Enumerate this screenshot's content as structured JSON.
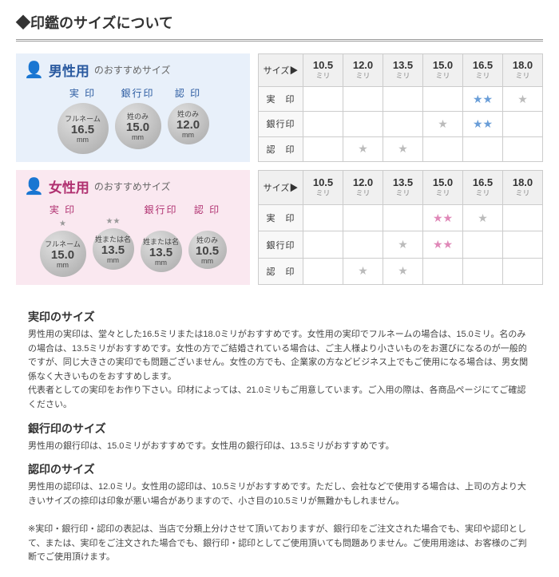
{
  "mainTitle": "◆印鑑のサイズについて",
  "sections": {
    "male": {
      "title": "男性用",
      "sub": "のおすすめサイズ",
      "seals": [
        {
          "label": "実 印",
          "stars": "★",
          "name": "フルネーム",
          "size": "16.5",
          "unit": "mm",
          "cls": "sc-lg"
        },
        {
          "label": "銀行印",
          "stars": "",
          "name": "姓のみ",
          "size": "15.0",
          "unit": "mm",
          "cls": "sc-md"
        },
        {
          "label": "認 印",
          "stars": "",
          "name": "姓のみ",
          "size": "12.0",
          "unit": "mm",
          "cls": "sc-sm"
        }
      ],
      "table": {
        "sizes": [
          "10.5",
          "12.0",
          "13.5",
          "15.0",
          "16.5",
          "18.0"
        ],
        "rows": [
          {
            "label": "実　印",
            "cells": [
              "",
              "",
              "",
              "",
              "bb",
              "g"
            ]
          },
          {
            "label": "銀行印",
            "cells": [
              "",
              "",
              "",
              "g",
              "bb",
              ""
            ]
          },
          {
            "label": "認　印",
            "cells": [
              "",
              "g",
              "g",
              "",
              "",
              ""
            ]
          }
        ]
      }
    },
    "female": {
      "title": "女性用",
      "sub": "のおすすめサイズ",
      "seals": [
        {
          "label": "実 印",
          "stars": "★",
          "name": "フルネーム",
          "size": "15.0",
          "unit": "mm",
          "cls": "sc-md"
        },
        {
          "label": "",
          "stars": "★★",
          "name": "姓または名",
          "size": "13.5",
          "unit": "mm",
          "cls": "sc-sm"
        },
        {
          "label": "銀行印",
          "stars": "",
          "name": "姓または名",
          "size": "13.5",
          "unit": "mm",
          "cls": "sc-sm"
        },
        {
          "label": "認 印",
          "stars": "",
          "name": "姓のみ",
          "size": "10.5",
          "unit": "mm",
          "cls": "sc-xs"
        }
      ],
      "table": {
        "sizes": [
          "10.5",
          "12.0",
          "13.5",
          "15.0",
          "16.5",
          "18.0"
        ],
        "rows": [
          {
            "label": "実　印",
            "cells": [
              "",
              "",
              "",
              "pp",
              "g",
              ""
            ]
          },
          {
            "label": "銀行印",
            "cells": [
              "",
              "",
              "g",
              "pp",
              "",
              ""
            ]
          },
          {
            "label": "認　印",
            "cells": [
              "",
              "g",
              "g",
              "",
              "",
              ""
            ]
          }
        ]
      }
    }
  },
  "sizeHeader": "サイズ▶",
  "sizeUnit": "ミリ",
  "text": [
    {
      "h": "実印のサイズ",
      "b": "男性用の実印は、堂々とした16.5ミリまたは18.0ミリがおすすめです。女性用の実印でフルネームの場合は、15.0ミリ。名のみの場合は、13.5ミリがおすすめです。女性の方でご結婚されている場合は、ご主人様より小さいものをお選びになるのが一般的ですが、同じ大きさの実印でも問題ございません。女性の方でも、企業家の方などビジネス上でもご使用になる場合は、男女関係なく大きいものをおすすめします。\n代表者としての実印をお作り下さい。印材によっては、21.0ミリもご用意しています。ご入用の際は、各商品ページにてご確認ください。"
    },
    {
      "h": "銀行印のサイズ",
      "b": "男性用の銀行印は、15.0ミリがおすすめです。女性用の銀行印は、13.5ミリがおすすめです。"
    },
    {
      "h": "認印のサイズ",
      "b": "男性用の認印は、12.0ミリ。女性用の認印は、10.5ミリがおすすめです。ただし、会社などで使用する場合は、上司の方より大きいサイズの捺印は印象が悪い場合がありますので、小さ目の10.5ミリが無難かもしれません。\n\n※実印・銀行印・認印の表記は、当店で分類上分けさせて頂いておりますが、銀行印をご注文された場合でも、実印や認印として、または、実印をご注文された場合でも、銀行印・認印としてご使用頂いても問題ありません。ご使用用途は、お客様のご判断でご使用頂けます。"
    }
  ]
}
